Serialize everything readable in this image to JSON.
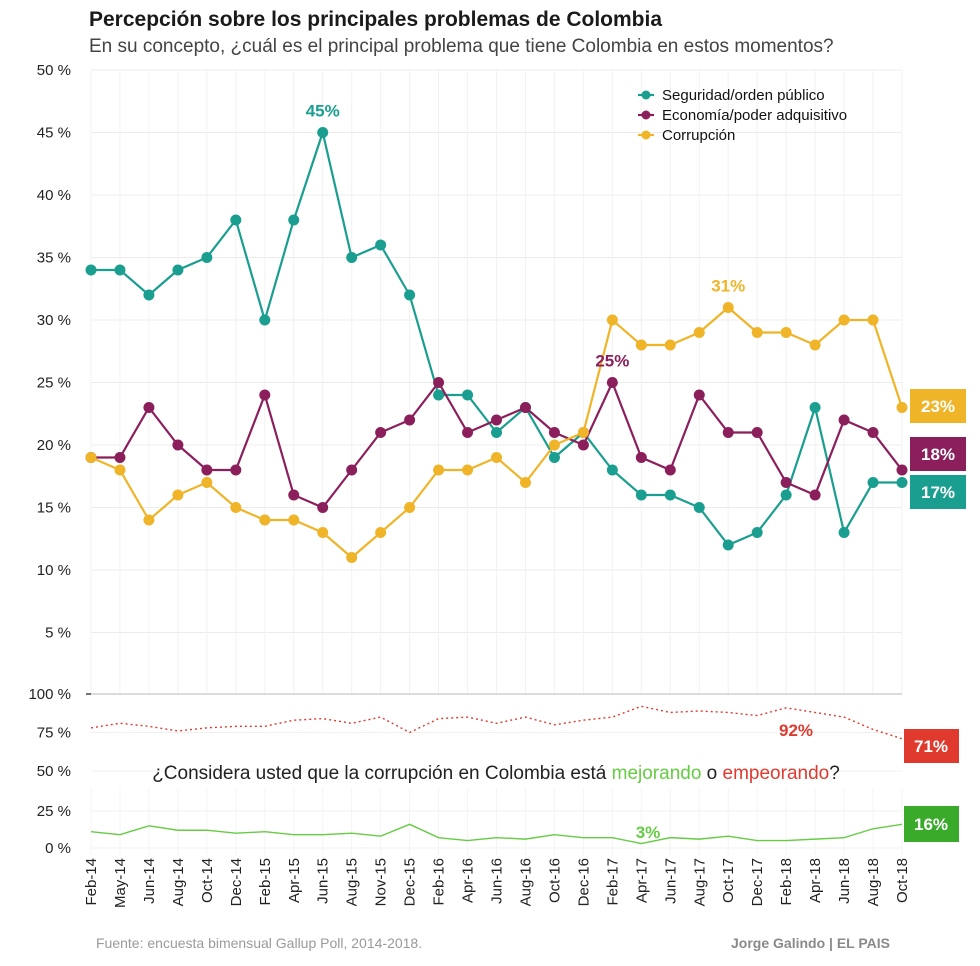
{
  "title": "Percepción sobre los principales problemas de Colombia",
  "subtitle": "En su concepto, ¿cuál es el principal problema que tiene Colombia en estos momentos?",
  "source": "Fuente: encuesta bimensual Gallup Poll, 2014-2018.",
  "credit": "Jorge Galindo | EL PAIS",
  "chart_data": [
    {
      "type": "line",
      "categories": [
        "Feb-14",
        "May-14",
        "Jun-14",
        "Aug-14",
        "Oct-14",
        "Dec-14",
        "Feb-15",
        "Apr-15",
        "Jun-15",
        "Aug-15",
        "Nov-15",
        "Dec-15",
        "Feb-16",
        "Apr-16",
        "Jun-16",
        "Aug-16",
        "Oct-16",
        "Dec-16",
        "Feb-17",
        "Apr-17",
        "Jun-17",
        "Aug-17",
        "Oct-17",
        "Dec-17",
        "Feb-18",
        "Apr-18",
        "Jun-18",
        "Aug-18",
        "Oct-18"
      ],
      "ylim": [
        0,
        50
      ],
      "yticks": [
        "50 %",
        "45 %",
        "40 %",
        "35 %",
        "30 %",
        "25 %",
        "20 %",
        "15 %",
        "10 %",
        "5 %"
      ],
      "series": [
        {
          "name": "Seguridad/orden público",
          "color": "#1a9e8f",
          "values": [
            34,
            34,
            32,
            34,
            35,
            38,
            30,
            38,
            45,
            35,
            36,
            32,
            24,
            24,
            21,
            23,
            19,
            21,
            18,
            16,
            16,
            15,
            12,
            13,
            16,
            23,
            13,
            17,
            17
          ],
          "peak_label": "45%",
          "end_label": "17%"
        },
        {
          "name": "Economía/poder adquisitivo",
          "color": "#8b1f5c",
          "values": [
            19,
            19,
            23,
            20,
            18,
            18,
            24,
            16,
            15,
            18,
            21,
            22,
            25,
            21,
            22,
            23,
            21,
            20,
            25,
            19,
            18,
            24,
            21,
            21,
            17,
            16,
            22,
            21,
            18
          ],
          "peak_label": "25%",
          "end_label": "18%"
        },
        {
          "name": "Corrupción",
          "color": "#f0b429",
          "values": [
            19,
            18,
            14,
            16,
            17,
            15,
            14,
            14,
            13,
            11,
            13,
            15,
            18,
            18,
            19,
            17,
            20,
            21,
            30,
            28,
            28,
            29,
            31,
            29,
            29,
            28,
            30,
            30,
            23
          ],
          "peak_label": "31%",
          "end_label": "23%"
        }
      ]
    },
    {
      "type": "line",
      "question_prefix": "¿Considera usted que la corrupción en Colombia está ",
      "question_good": "mejorando",
      "question_mid": " o ",
      "question_bad": "empeorando",
      "question_suffix": "?",
      "ylim": [
        0,
        100
      ],
      "yticks": [
        "100 %",
        "75 %",
        "50 %",
        "25 %",
        "0 %"
      ],
      "series": [
        {
          "name": "empeorando",
          "color": "#e03a2e",
          "style": "dotted",
          "values": [
            78,
            81,
            79,
            76,
            78,
            79,
            79,
            83,
            84,
            81,
            85,
            75,
            84,
            85,
            81,
            85,
            80,
            83,
            85,
            92,
            88,
            89,
            88,
            86,
            91,
            88,
            85,
            77,
            71
          ],
          "peak_label": "92%",
          "end_label": "71%"
        },
        {
          "name": "mejorando",
          "color": "#66cc44",
          "style": "solid",
          "values": [
            11,
            9,
            15,
            12,
            12,
            10,
            11,
            9,
            9,
            10,
            8,
            16,
            7,
            5,
            7,
            6,
            9,
            7,
            7,
            3,
            7,
            6,
            8,
            5,
            5,
            6,
            7,
            13,
            16
          ],
          "low_label": "3%",
          "end_label": "16%"
        }
      ]
    }
  ]
}
